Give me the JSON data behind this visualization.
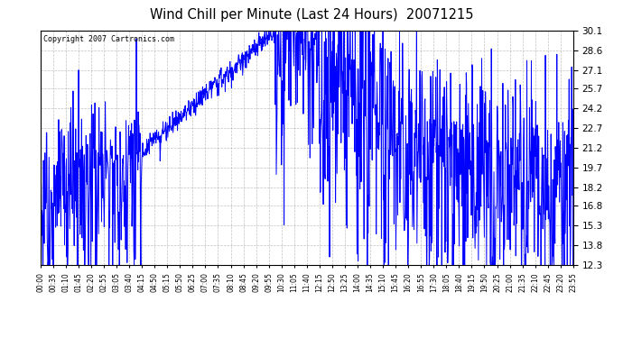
{
  "title": "Wind Chill per Minute (Last 24 Hours)  20071215",
  "copyright": "Copyright 2007 Cartronics.com",
  "line_color": "#0000FF",
  "bg_color": "#FFFFFF",
  "plot_bg_color": "#FFFFFF",
  "grid_color": "#999999",
  "ylim": [
    12.3,
    30.1
  ],
  "yticks": [
    12.3,
    13.8,
    15.3,
    16.8,
    18.2,
    19.7,
    21.2,
    22.7,
    24.2,
    25.7,
    27.1,
    28.6,
    30.1
  ],
  "xtick_labels": [
    "00:00",
    "00:35",
    "01:10",
    "01:45",
    "02:20",
    "02:55",
    "03:05",
    "03:40",
    "04:15",
    "04:50",
    "05:15",
    "05:50",
    "06:25",
    "07:00",
    "07:35",
    "08:10",
    "08:45",
    "09:20",
    "09:55",
    "10:30",
    "11:05",
    "11:40",
    "12:15",
    "12:50",
    "13:25",
    "14:00",
    "14:35",
    "15:10",
    "15:45",
    "16:20",
    "16:55",
    "17:30",
    "18:05",
    "18:40",
    "19:15",
    "19:50",
    "20:25",
    "21:00",
    "21:35",
    "22:10",
    "22:45",
    "23:20",
    "23:55"
  ],
  "num_points": 1440
}
